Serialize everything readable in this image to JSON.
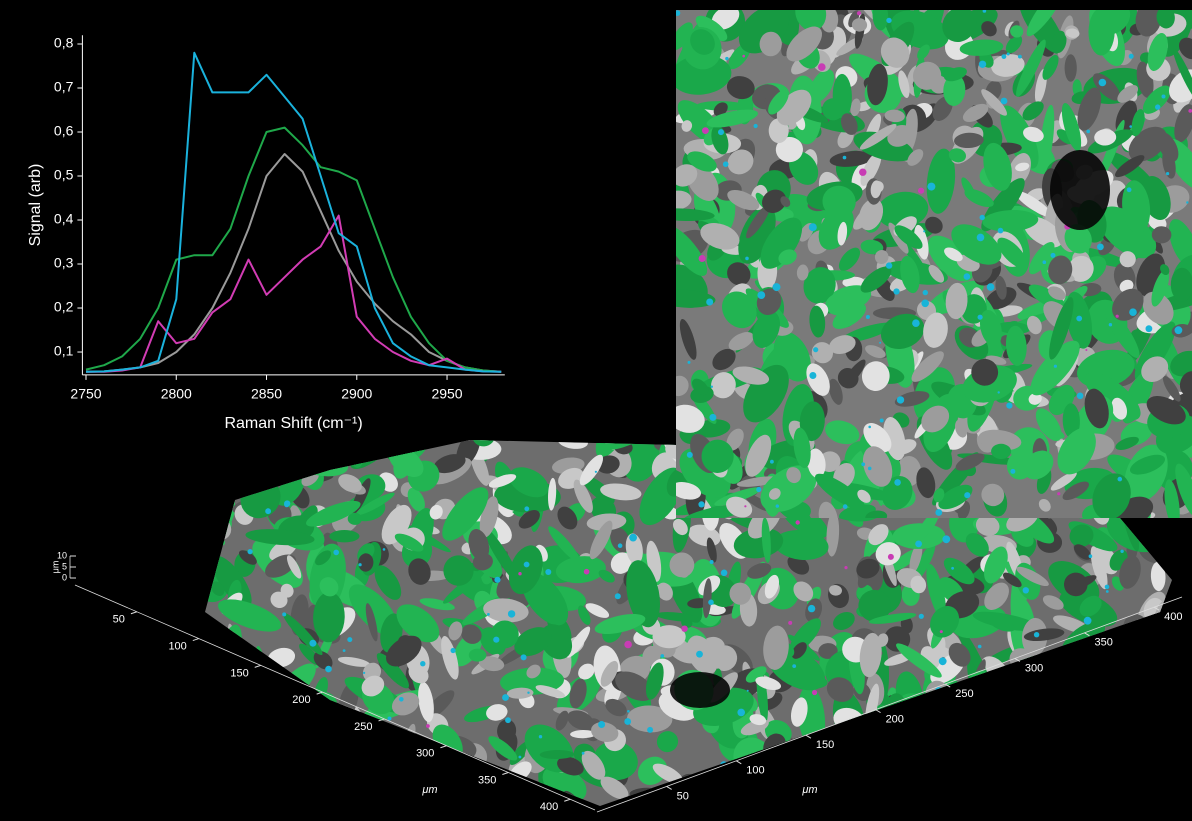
{
  "chart_data": [
    {
      "type": "line",
      "ylabel": "Signal (arb)",
      "xlabel": "Raman Shift (cm⁻¹)",
      "x": [
        2750,
        2760,
        2770,
        2780,
        2790,
        2800,
        2810,
        2820,
        2830,
        2840,
        2850,
        2860,
        2870,
        2880,
        2890,
        2900,
        2910,
        2920,
        2930,
        2940,
        2950,
        2960,
        2970,
        2980
      ],
      "series": [
        {
          "color": "#9a9a9a",
          "values": [
            0.055,
            0.056,
            0.06,
            0.065,
            0.075,
            0.1,
            0.14,
            0.2,
            0.28,
            0.38,
            0.5,
            0.55,
            0.51,
            0.42,
            0.33,
            0.26,
            0.21,
            0.17,
            0.14,
            0.1,
            0.08,
            0.065,
            0.058,
            0.055
          ]
        },
        {
          "color": "#1fa84a",
          "values": [
            0.06,
            0.07,
            0.09,
            0.13,
            0.2,
            0.31,
            0.32,
            0.32,
            0.38,
            0.5,
            0.6,
            0.61,
            0.57,
            0.52,
            0.51,
            0.49,
            0.38,
            0.27,
            0.18,
            0.12,
            0.08,
            0.065,
            0.058,
            0.055
          ]
        },
        {
          "color": "#d23cb4",
          "values": [
            0.055,
            0.055,
            0.058,
            0.065,
            0.17,
            0.12,
            0.13,
            0.19,
            0.22,
            0.31,
            0.23,
            0.27,
            0.31,
            0.34,
            0.41,
            0.18,
            0.13,
            0.1,
            0.08,
            0.07,
            0.085,
            0.06,
            0.056,
            0.055
          ]
        },
        {
          "color": "#1ab2dc",
          "values": [
            0.055,
            0.056,
            0.06,
            0.065,
            0.08,
            0.22,
            0.78,
            0.69,
            0.69,
            0.69,
            0.73,
            0.68,
            0.63,
            0.5,
            0.37,
            0.34,
            0.2,
            0.12,
            0.09,
            0.07,
            0.065,
            0.06,
            0.056,
            0.055
          ]
        }
      ],
      "xlim": [
        2748,
        2982
      ],
      "ylim": [
        0.048,
        0.82
      ],
      "xticks": [
        2750,
        2800,
        2850,
        2900,
        2950
      ],
      "yticks": [
        {
          "value": 0.1,
          "label": "0,1"
        },
        {
          "value": 0.2,
          "label": "0,2"
        },
        {
          "value": 0.3,
          "label": "0,3"
        },
        {
          "value": 0.4,
          "label": "0,4"
        },
        {
          "value": 0.5,
          "label": "0,5"
        },
        {
          "value": 0.6,
          "label": "0,6"
        },
        {
          "value": 0.7,
          "label": "0,7"
        },
        {
          "value": 0.8,
          "label": "0,8"
        }
      ]
    },
    {
      "type": "surface",
      "xlabel": "μm",
      "ylabel": "μm",
      "zlabel": "μm",
      "xlim": [
        0,
        420
      ],
      "ylim": [
        0,
        420
      ],
      "zlim": [
        0,
        10
      ],
      "xticks": [
        50,
        100,
        150,
        200,
        250,
        300,
        350,
        400
      ],
      "yticks": [
        50,
        100,
        150,
        200,
        250,
        300,
        350,
        400
      ],
      "zticks": [
        0,
        5,
        10
      ]
    }
  ]
}
